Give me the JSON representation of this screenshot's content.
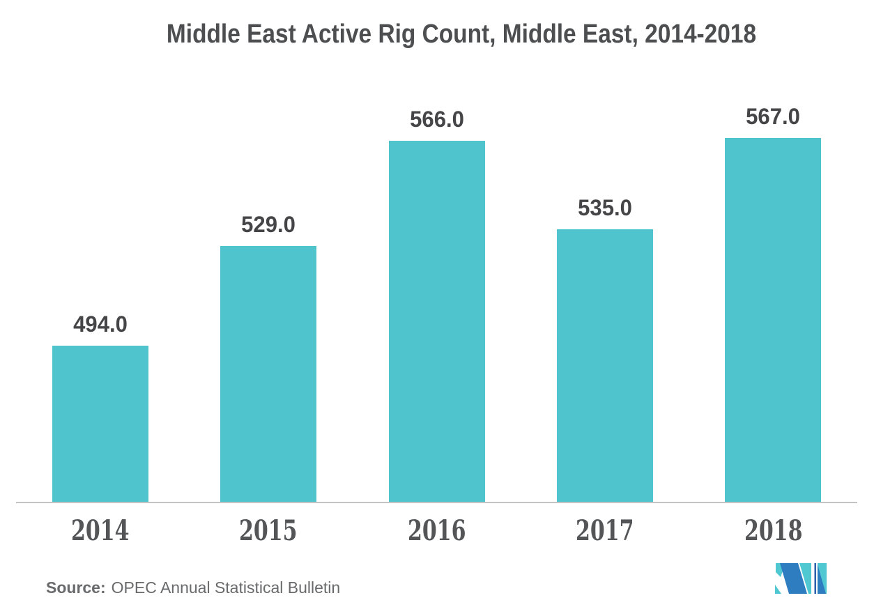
{
  "title": "Middle East Active Rig Count, Middle East, 2014-2018",
  "source": {
    "label": "Source:",
    "text": "OPEC Annual Statistical Bulletin"
  },
  "logo": {
    "name": "mordor-intelligence-logo",
    "blue": "#2e7dc1",
    "teal": "#4fc8d2",
    "dark_blue": "#2b5fa8"
  },
  "colors": {
    "bar": "#4fc4cc",
    "title_text": "#4d4e50",
    "value_text": "#454548",
    "year_text": "#545557",
    "source_text": "#696a6c",
    "axis_line": "#c2c2c2",
    "background": "#ffffff"
  },
  "chart_data": {
    "type": "bar",
    "title": "Middle East Active Rig Count, Middle East, 2014-2018",
    "categories": [
      "2014",
      "2015",
      "2016",
      "2017",
      "2018"
    ],
    "values": [
      494.0,
      529.0,
      566.0,
      535.0,
      567.0
    ],
    "value_labels": [
      "494.0",
      "529.0",
      "566.0",
      "535.0",
      "567.0"
    ],
    "xlabel": "",
    "ylabel": "",
    "ylim": [
      439,
      567
    ],
    "grid": false,
    "legend": false,
    "bar_color": "#4fc4cc",
    "value_label_position": "above-bar",
    "baseline_note": "bars drawn with non-zero implied baseline"
  }
}
